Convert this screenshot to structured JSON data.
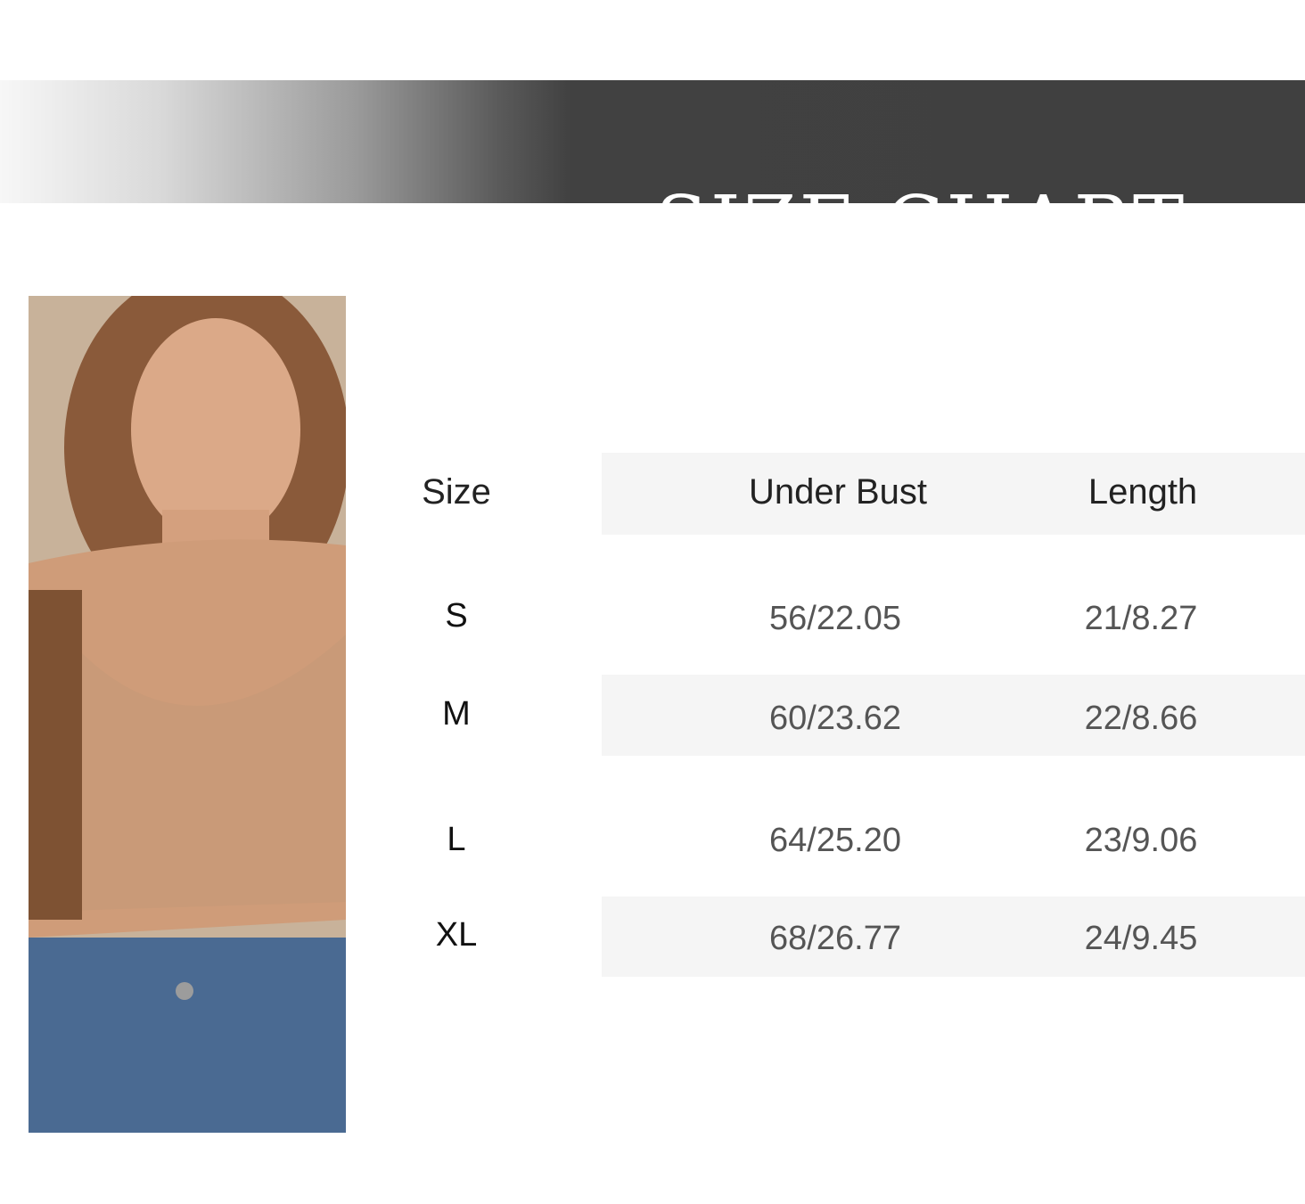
{
  "header": {
    "title": "SIZE CHART•"
  },
  "photo": {
    "alt": "model wearing bra",
    "colors": {
      "skin": "#cfa07c",
      "hair": "#8a5a3a",
      "jeans": "#4d6c92"
    }
  },
  "table": {
    "columns": [
      "Size",
      "Under Bust",
      "Length"
    ],
    "rows": [
      {
        "size": "S",
        "under_bust": "56/22.05",
        "length": "21/8.27"
      },
      {
        "size": "M",
        "under_bust": "60/23.62",
        "length": "22/8.66"
      },
      {
        "size": "L",
        "under_bust": "64/25.20",
        "length": "23/9.06"
      },
      {
        "size": "XL",
        "under_bust": "68/26.77",
        "length": "24/9.45"
      }
    ],
    "band_color": "#f5f5f5"
  }
}
